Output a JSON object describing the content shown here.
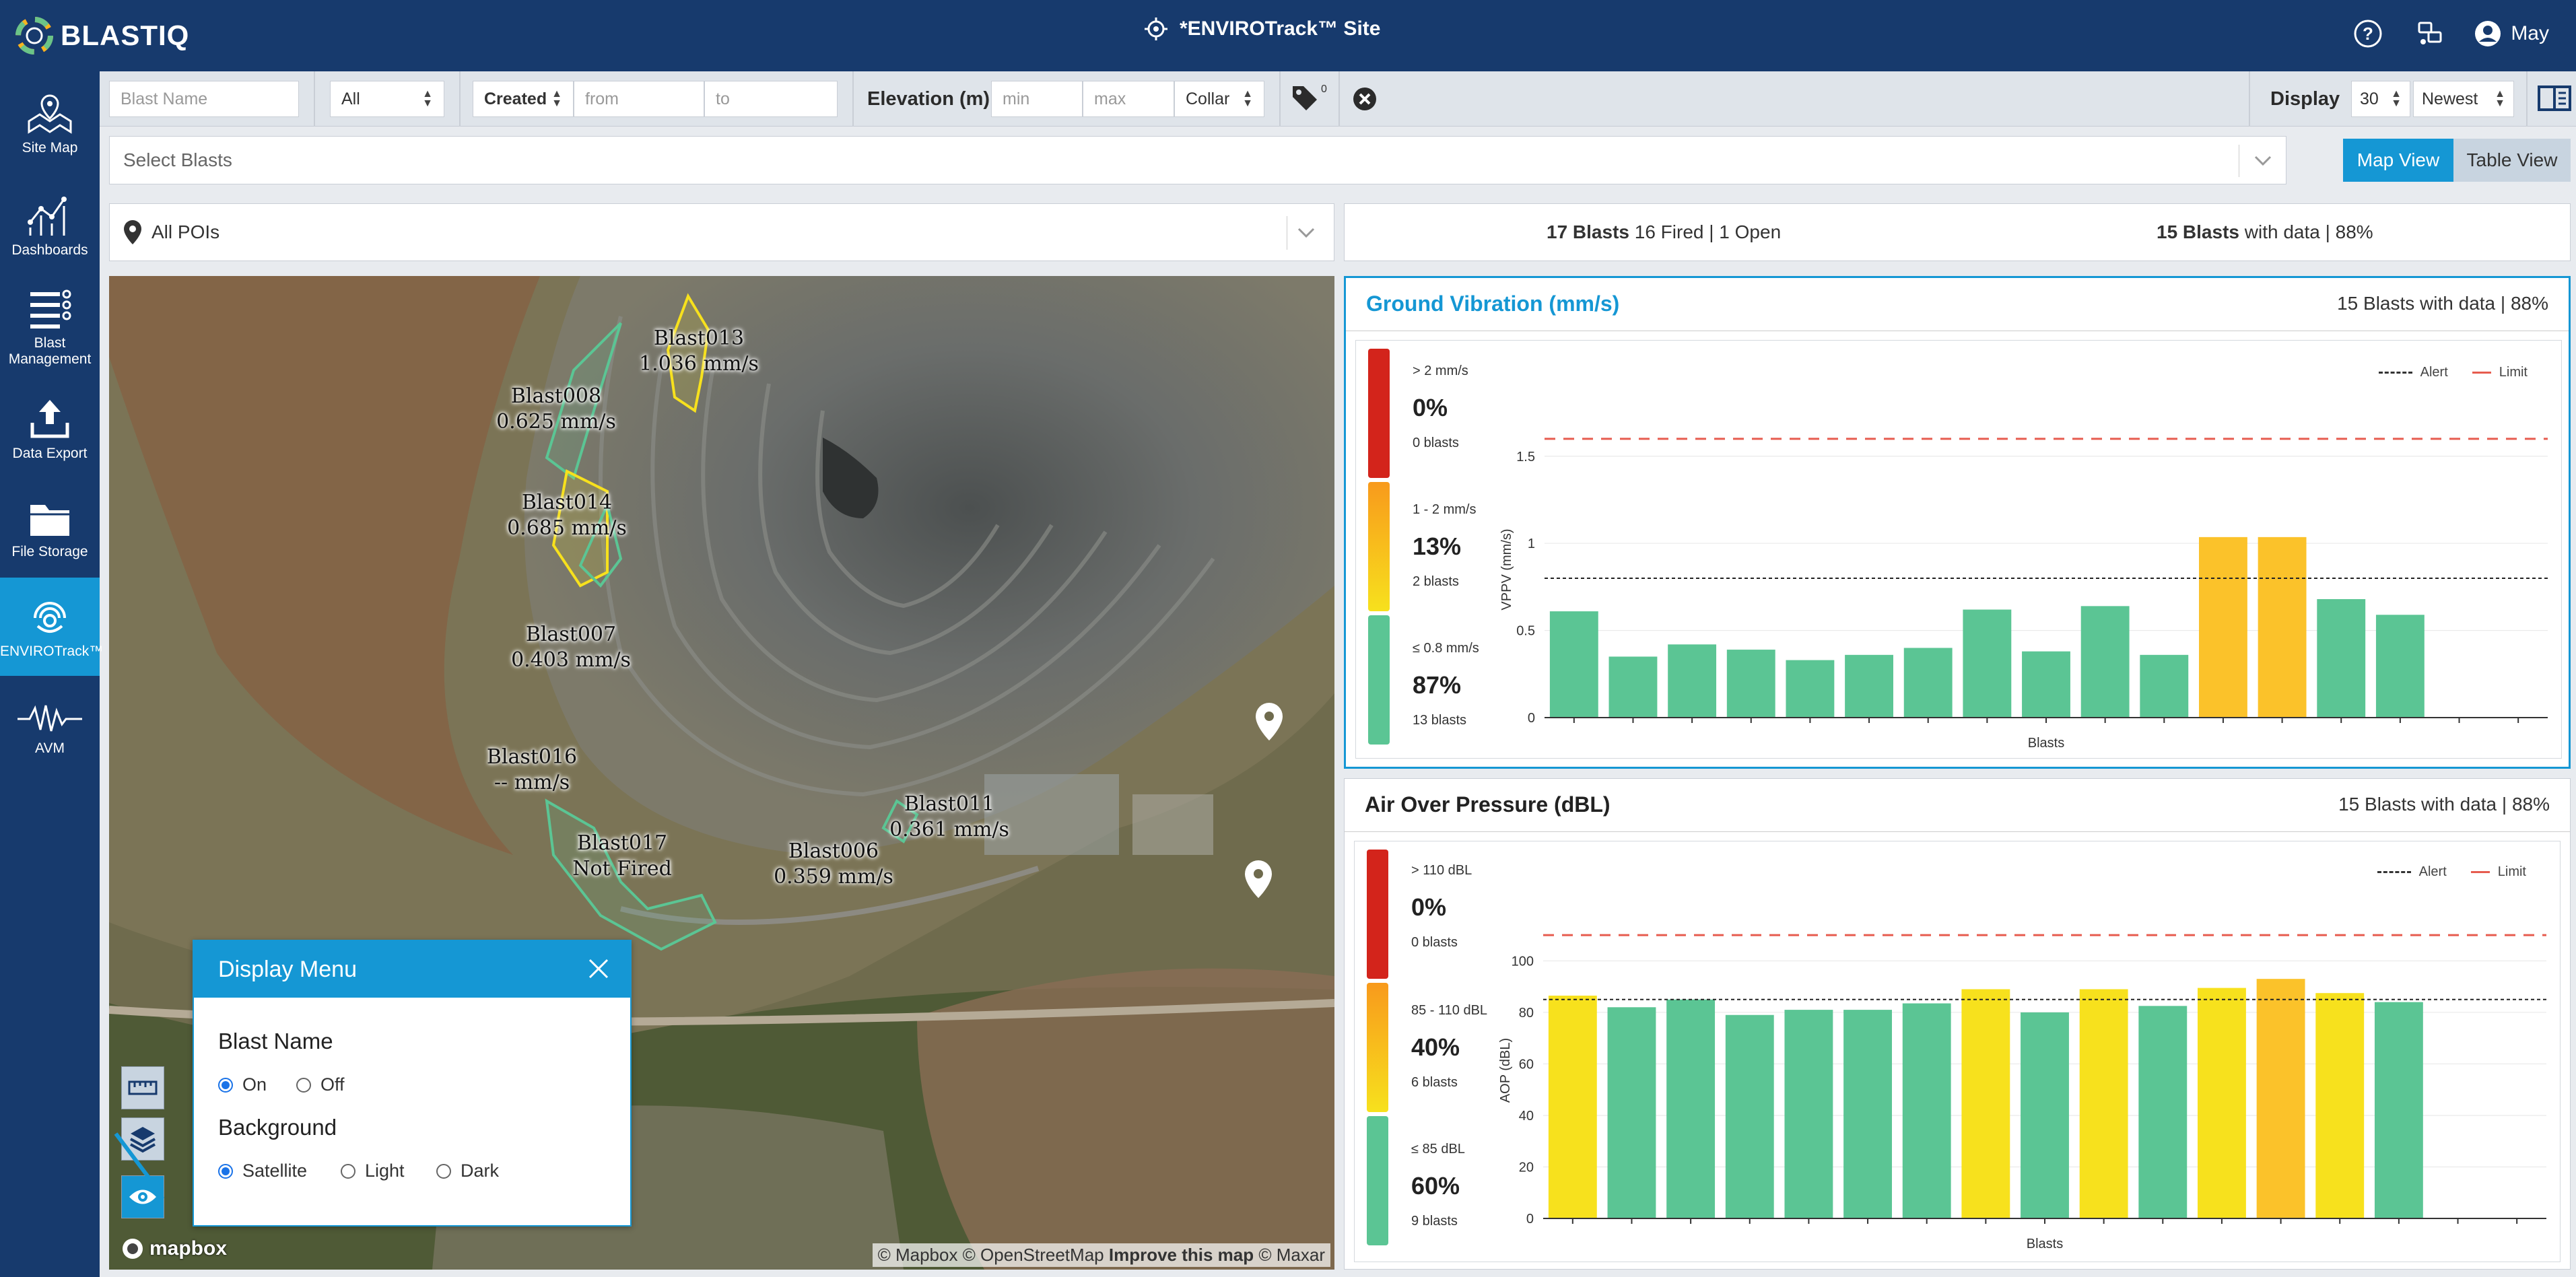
{
  "app": {
    "logo_text": "BLASTIQ",
    "site_title": "*ENVIROTrack™ Site",
    "user": "May"
  },
  "nav": [
    {
      "label": "Site Map",
      "icon": "map-pin-icon"
    },
    {
      "label": "Dashboards",
      "icon": "line-chart-icon"
    },
    {
      "label": "Blast Management",
      "icon": "list-icon"
    },
    {
      "label": "Data Export",
      "icon": "upload-icon"
    },
    {
      "label": "File Storage",
      "icon": "folder-icon"
    },
    {
      "label": "ENVIROTrack™",
      "icon": "envirotrack-icon"
    },
    {
      "label": "AVM",
      "icon": "waveform-icon"
    }
  ],
  "filters": {
    "blast_name_placeholder": "Blast Name",
    "status_value": "All",
    "date_type": "Created",
    "from_placeholder": "from",
    "to_placeholder": "to",
    "elevation_label": "Elevation (m)",
    "min_placeholder": "min",
    "max_placeholder": "max",
    "elevation_ref": "Collar",
    "tag_count": "0",
    "display_label": "Display",
    "display_count": "30",
    "display_order": "Newest"
  },
  "select_blasts_placeholder": "Select Blasts",
  "views": {
    "map": "Map View",
    "table": "Table View"
  },
  "poi": "All POIs",
  "summary": {
    "blasts_count": "17 Blasts",
    "blasts_detail": "16 Fired | 1 Open",
    "data_count": "15 Blasts",
    "data_detail": "with data | 88%"
  },
  "map": {
    "blasts": [
      {
        "name": "Blast013",
        "value": "1.036 mm/s"
      },
      {
        "name": "Blast008",
        "value": "0.625 mm/s"
      },
      {
        "name": "Blast014",
        "value": "0.685 mm/s"
      },
      {
        "name": "Blast007",
        "value": "0.403 mm/s"
      },
      {
        "name": "Blast016",
        "value": "-- mm/s"
      },
      {
        "name": "Blast017",
        "value": "Not Fired"
      },
      {
        "name": "Blast011",
        "value": "0.361 mm/s"
      },
      {
        "name": "Blast006",
        "value": "0.359 mm/s"
      }
    ],
    "attribution_a": "© Mapbox © OpenStreetMap",
    "attribution_b": "Improve this map",
    "attribution_c": "© Maxar",
    "brand": "mapbox"
  },
  "display_menu": {
    "title": "Display Menu",
    "blast_name_label": "Blast Name",
    "on": "On",
    "off": "Off",
    "background_label": "Background",
    "satellite": "Satellite",
    "light": "Light",
    "dark": "Dark",
    "blast_name_selected": "On",
    "background_selected": "Satellite"
  },
  "colors": {
    "high": "#d3241b",
    "mid": "#f7e11d",
    "mid_orange": "#fbc22a",
    "low": "#5bc594",
    "accent": "#1597d4",
    "nav": "#173a6d",
    "limit": "#e65c4f"
  },
  "ground_vibration": {
    "title": "Ground Vibration (mm/s)",
    "subtitle": "15 Blasts with data | 88%",
    "buckets": [
      {
        "range": "> 2 mm/s",
        "percent": "0%",
        "count": "0 blasts"
      },
      {
        "range": "1 - 2 mm/s",
        "percent": "13%",
        "count": "2 blasts"
      },
      {
        "range": "≤ 0.8 mm/s",
        "percent": "87%",
        "count": "13 blasts"
      }
    ],
    "legend": {
      "alert": "Alert",
      "limit": "Limit"
    }
  },
  "air_over_pressure": {
    "title": "Air Over Pressure (dBL)",
    "subtitle": "15 Blasts with data | 88%",
    "buckets": [
      {
        "range": "> 110 dBL",
        "percent": "0%",
        "count": "0 blasts"
      },
      {
        "range": "85 - 110 dBL",
        "percent": "40%",
        "count": "6 blasts"
      },
      {
        "range": "≤ 85 dBL",
        "percent": "60%",
        "count": "9 blasts"
      }
    ],
    "legend": {
      "alert": "Alert",
      "limit": "Limit"
    }
  },
  "chart_data": [
    {
      "type": "bar",
      "title": "Ground Vibration (mm/s)",
      "xlabel": "Blasts",
      "ylabel": "VPPV (mm/s)",
      "ylim": [
        0,
        1.7
      ],
      "yticks": [
        "0",
        "0.5",
        "1",
        "1.5"
      ],
      "alert": 0.8,
      "limit": 1.6,
      "slots": 17,
      "values": [
        0.61,
        0.35,
        0.42,
        0.39,
        0.33,
        0.36,
        0.4,
        0.62,
        0.38,
        0.64,
        0.36,
        1.036,
        1.036,
        0.68,
        0.59
      ],
      "colors": [
        "low",
        "low",
        "low",
        "low",
        "low",
        "low",
        "low",
        "low",
        "low",
        "low",
        "low",
        "mid_orange",
        "mid_orange",
        "low",
        "low"
      ]
    },
    {
      "type": "bar",
      "title": "Air Over Pressure (dBL)",
      "xlabel": "Blasts",
      "ylabel": "AOP (dBL)",
      "ylim": [
        0,
        115
      ],
      "yticks": [
        "0",
        "20",
        "40",
        "60",
        "80",
        "100"
      ],
      "alert": 85,
      "limit": 110,
      "slots": 17,
      "values": [
        86.5,
        82,
        85,
        79,
        81,
        81,
        83.5,
        89,
        80,
        89,
        82.5,
        89.5,
        93,
        87.5,
        84
      ],
      "colors": [
        "mid",
        "low",
        "low",
        "low",
        "low",
        "low",
        "low",
        "mid",
        "low",
        "mid",
        "low",
        "mid",
        "mid_orange",
        "mid",
        "low"
      ]
    }
  ]
}
